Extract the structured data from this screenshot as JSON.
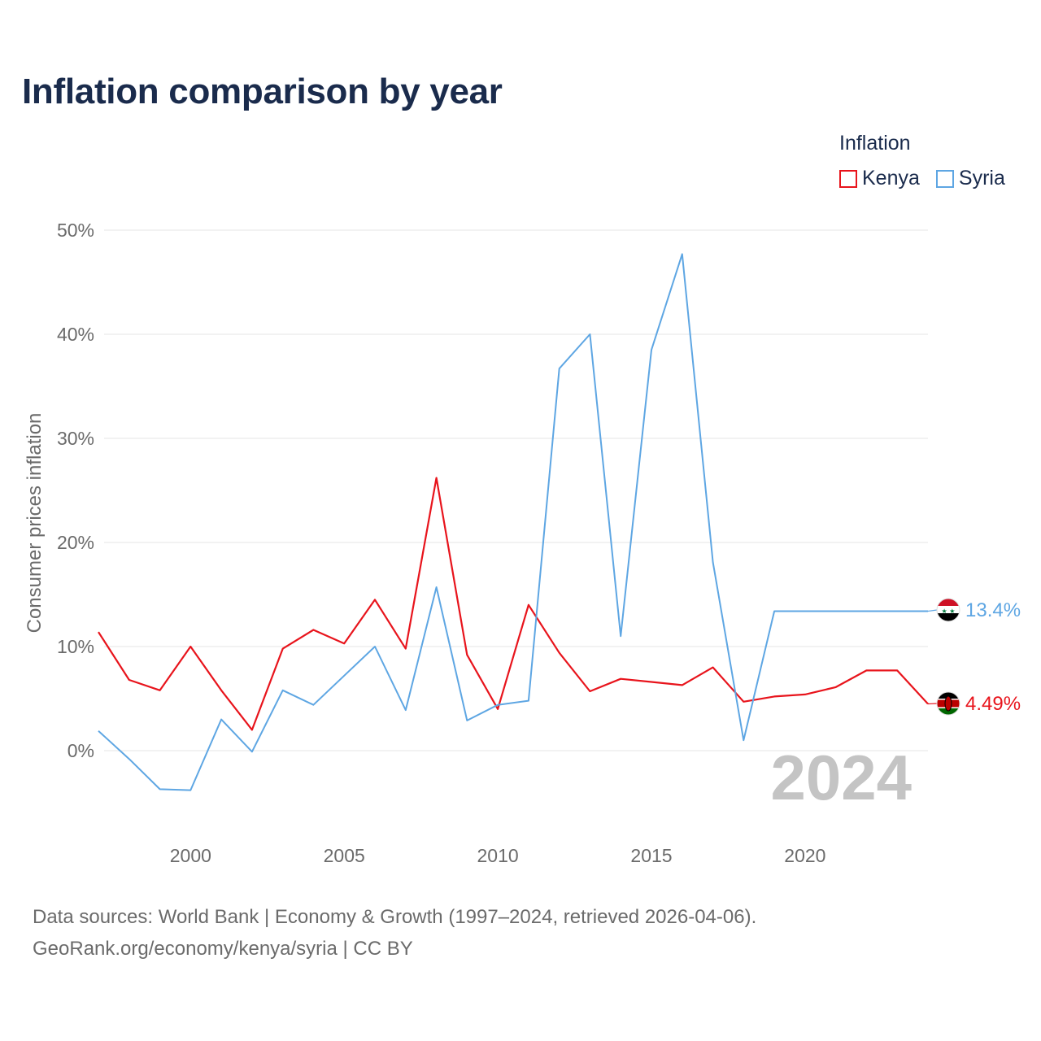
{
  "title": "Inflation comparison by year",
  "legend": {
    "title": "Inflation",
    "items": [
      {
        "label": "Kenya",
        "color": "#e8141c"
      },
      {
        "label": "Syria",
        "color": "#5ea6e3"
      }
    ]
  },
  "source": {
    "line1": "Data sources: World Bank | Economy & Growth (1997–2024, retrieved 2026-04-06).",
    "line2": "GeoRank.org/economy/kenya/syria | CC BY"
  },
  "year_display": "2024",
  "chart_data": {
    "type": "line",
    "title": "Inflation comparison by year",
    "xlabel": "",
    "ylabel": "Consumer prices inflation",
    "xlim": [
      1997,
      2024
    ],
    "ylim": [
      -8,
      53
    ],
    "x_ticks": [
      2000,
      2005,
      2010,
      2015,
      2020
    ],
    "y_ticks": [
      0,
      10,
      20,
      30,
      40,
      50
    ],
    "y_tick_labels": [
      "0%",
      "10%",
      "20%",
      "30%",
      "40%",
      "50%"
    ],
    "grid": true,
    "legend_position": "top-right",
    "x": [
      1997,
      1998,
      1999,
      2000,
      2001,
      2002,
      2003,
      2004,
      2005,
      2006,
      2007,
      2008,
      2009,
      2010,
      2011,
      2012,
      2013,
      2014,
      2015,
      2016,
      2017,
      2018,
      2019,
      2020,
      2021,
      2022,
      2023,
      2024
    ],
    "series": [
      {
        "name": "Kenya",
        "color": "#e8141c",
        "values": [
          11.4,
          6.8,
          5.8,
          10.0,
          5.8,
          2.0,
          9.8,
          11.6,
          10.3,
          14.5,
          9.8,
          26.2,
          9.2,
          4.0,
          14.0,
          9.4,
          5.7,
          6.9,
          6.6,
          6.3,
          8.0,
          4.7,
          5.2,
          5.4,
          6.1,
          7.7,
          7.7,
          4.49
        ],
        "end_label": "4.49%"
      },
      {
        "name": "Syria",
        "color": "#5ea6e3",
        "values": [
          1.9,
          -0.8,
          -3.7,
          -3.8,
          3.0,
          -0.1,
          5.8,
          4.4,
          7.2,
          10.0,
          3.9,
          15.7,
          2.9,
          4.4,
          4.8,
          36.7,
          40.0,
          11.0,
          38.5,
          47.7,
          18.1,
          1.0,
          13.4,
          13.4,
          13.4,
          13.4,
          13.4,
          13.4
        ],
        "end_label": "13.4%"
      }
    ]
  }
}
